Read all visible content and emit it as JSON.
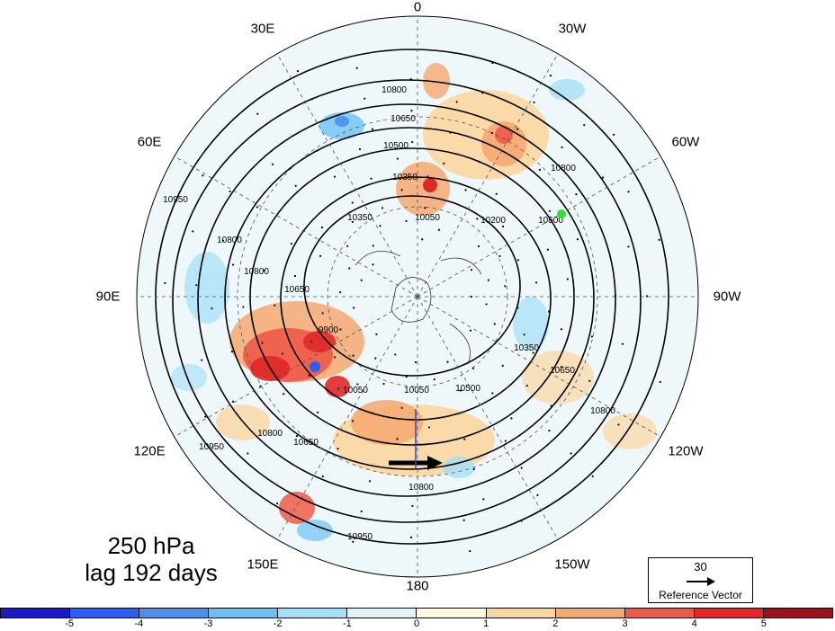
{
  "map": {
    "longitude_labels": [
      {
        "text": "0",
        "pos": "top"
      },
      {
        "text": "30W",
        "pos": "top-right-1"
      },
      {
        "text": "60W",
        "pos": "top-right-2"
      },
      {
        "text": "90W",
        "pos": "right"
      },
      {
        "text": "120W",
        "pos": "bottom-right-2"
      },
      {
        "text": "150W",
        "pos": "bottom-right-1"
      },
      {
        "text": "180",
        "pos": "bottom"
      },
      {
        "text": "150E",
        "pos": "bottom-left-1"
      },
      {
        "text": "120E",
        "pos": "bottom-left-2"
      },
      {
        "text": "90E",
        "pos": "left"
      },
      {
        "text": "60E",
        "pos": "top-left-2"
      },
      {
        "text": "30E",
        "pos": "top-left-1"
      }
    ],
    "contour_labels": [
      "10950",
      "10800",
      "10650",
      "10500",
      "10350",
      "10200",
      "10050",
      "9900"
    ],
    "marker_color": "#33dd33"
  },
  "title": {
    "line1": "250 hPa",
    "line2": "lag 192 days"
  },
  "reference_vector": {
    "magnitude": "30",
    "label": "Reference Vector"
  },
  "colorbar": {
    "colors": [
      "#1a1ac8",
      "#2b5ff0",
      "#4a90f0",
      "#6cc0f5",
      "#a4def8",
      "#e0f4fa",
      "#fff8dc",
      "#fbd6a0",
      "#f5a870",
      "#ee5a48",
      "#e02828",
      "#a0101c"
    ],
    "tick_labels": [
      "-5",
      "-4",
      "-3",
      "-2",
      "-1",
      "0",
      "1",
      "2",
      "3",
      "4",
      "5"
    ]
  }
}
